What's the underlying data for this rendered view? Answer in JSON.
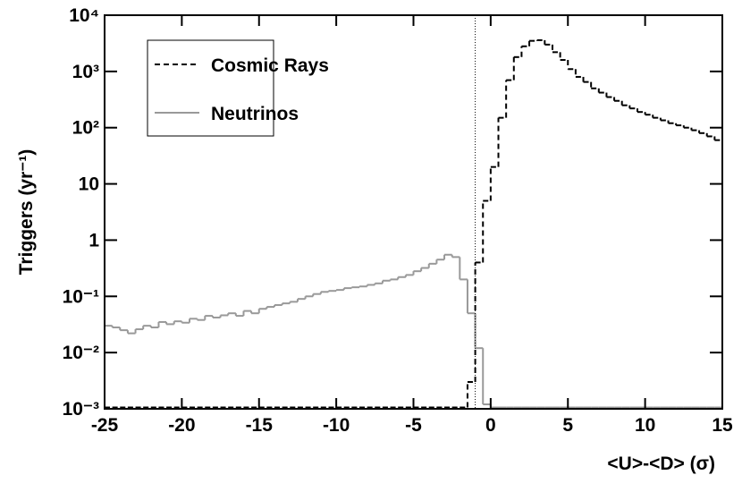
{
  "chart_data": {
    "type": "histogram",
    "xlabel": "<U>-<D> (σ)",
    "ylabel": "Triggers (yr⁻¹)",
    "log_y": true,
    "legend": "upper left",
    "vline_x": -1,
    "bins": [
      -25,
      -24.5,
      -24,
      -23.5,
      -23,
      -22.5,
      -22,
      -21.5,
      -21,
      -20.5,
      -20,
      -19.5,
      -19,
      -18.5,
      -18,
      -17.5,
      -17,
      -16.5,
      -16,
      -15.5,
      -15,
      -14.5,
      -14,
      -13.5,
      -13,
      -12.5,
      -12,
      -11.5,
      -11,
      -10.5,
      -10,
      -9.5,
      -9,
      -8.5,
      -8,
      -7.5,
      -7,
      -6.5,
      -6,
      -5.5,
      -5,
      -4.5,
      -4,
      -3.5,
      -3,
      -2.5,
      -2,
      -1.5,
      -1,
      -0.5,
      0,
      0.5,
      1,
      1.5,
      2,
      2.5,
      3,
      3.5,
      4,
      4.5,
      5,
      5.5,
      6,
      6.5,
      7,
      7.5,
      8,
      8.5,
      9,
      9.5,
      10,
      10.5,
      11,
      11.5,
      12,
      12.5,
      13,
      13.5,
      14,
      14.5,
      15
    ],
    "series": [
      {
        "name": "Cosmic Rays",
        "color": "#000000",
        "dash": "6,4",
        "values": [
          0,
          0,
          0,
          0,
          0,
          0,
          0,
          0,
          0,
          0,
          0,
          0,
          0,
          0,
          0,
          0,
          0,
          0,
          0,
          0,
          0,
          0,
          0,
          0,
          0,
          0,
          0,
          0,
          0,
          0,
          0,
          0,
          0,
          0,
          0,
          0,
          0,
          0,
          0,
          0,
          0,
          0,
          0,
          0,
          0,
          0,
          0,
          0.003,
          0.4,
          5,
          20,
          150,
          700,
          1800,
          2800,
          3500,
          3600,
          3000,
          2200,
          1600,
          1100,
          800,
          650,
          500,
          420,
          350,
          300,
          250,
          220,
          190,
          170,
          150,
          135,
          120,
          110,
          100,
          90,
          80,
          70,
          60
        ]
      },
      {
        "name": "Neutrinos",
        "color": "#999999",
        "values": [
          0.03,
          0.028,
          0.025,
          0.022,
          0.026,
          0.03,
          0.028,
          0.035,
          0.032,
          0.036,
          0.034,
          0.04,
          0.038,
          0.045,
          0.042,
          0.046,
          0.05,
          0.045,
          0.055,
          0.05,
          0.06,
          0.065,
          0.07,
          0.075,
          0.08,
          0.09,
          0.1,
          0.11,
          0.12,
          0.125,
          0.13,
          0.14,
          0.145,
          0.15,
          0.16,
          0.17,
          0.19,
          0.2,
          0.22,
          0.24,
          0.28,
          0.32,
          0.38,
          0.45,
          0.55,
          0.5,
          0.2,
          0.05,
          0.012,
          0.0012,
          0,
          0,
          0,
          0,
          0,
          0,
          0,
          0,
          0,
          0,
          0,
          0,
          0,
          0,
          0,
          0,
          0,
          0,
          0,
          0,
          0,
          0,
          0,
          0,
          0,
          0,
          0,
          0,
          0,
          0
        ]
      }
    ],
    "xlim": [
      -25,
      15
    ],
    "xticks": [
      -25,
      -20,
      -15,
      -10,
      -5,
      0,
      5,
      10,
      15
    ],
    "ylim": [
      0.001,
      10000
    ],
    "yticks": [
      {
        "value": 0.001,
        "label": "10⁻³"
      },
      {
        "value": 0.01,
        "label": "10⁻²"
      },
      {
        "value": 0.1,
        "label": "10⁻¹"
      },
      1,
      10,
      {
        "value": 100,
        "label": "10²"
      },
      {
        "value": 1000,
        "label": "10³"
      },
      {
        "value": 10000,
        "label": "10⁴"
      }
    ]
  }
}
